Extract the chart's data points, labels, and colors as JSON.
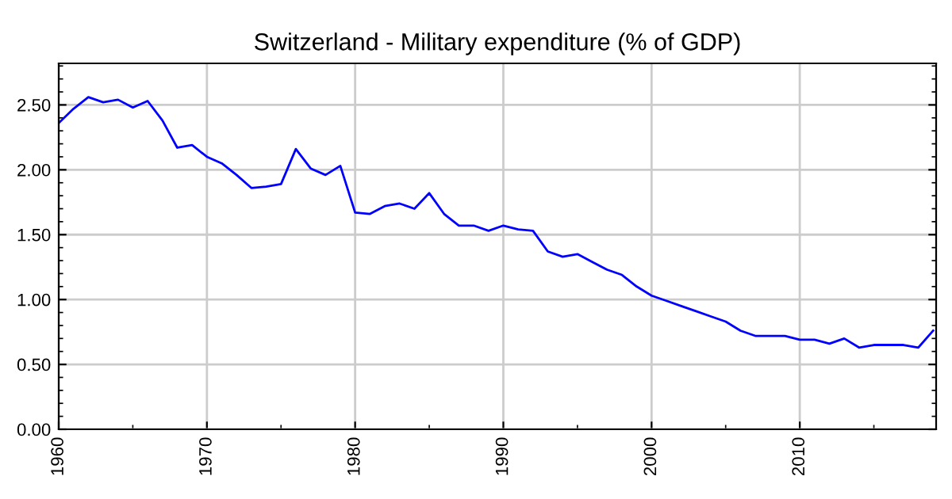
{
  "chart_data": {
    "type": "line",
    "title": "Switzerland - Military expenditure (% of GDP)",
    "x": [
      1960,
      1961,
      1962,
      1963,
      1964,
      1965,
      1966,
      1967,
      1968,
      1969,
      1970,
      1971,
      1972,
      1973,
      1974,
      1975,
      1976,
      1977,
      1978,
      1979,
      1980,
      1981,
      1982,
      1983,
      1984,
      1985,
      1986,
      1987,
      1988,
      1989,
      1990,
      1991,
      1992,
      1993,
      1994,
      1995,
      1996,
      1997,
      1998,
      1999,
      2000,
      2001,
      2002,
      2003,
      2004,
      2005,
      2006,
      2007,
      2008,
      2009,
      2010,
      2011,
      2012,
      2013,
      2014,
      2015,
      2016,
      2017,
      2018,
      2019
    ],
    "series": [
      {
        "color": "#0000ff",
        "values": [
          2.36,
          2.47,
          2.56,
          2.52,
          2.54,
          2.48,
          2.53,
          2.38,
          2.17,
          2.19,
          2.1,
          2.05,
          1.96,
          1.86,
          1.87,
          1.89,
          2.16,
          2.01,
          1.96,
          2.03,
          1.67,
          1.66,
          1.72,
          1.74,
          1.7,
          1.82,
          1.66,
          1.57,
          1.57,
          1.53,
          1.57,
          1.54,
          1.53,
          1.37,
          1.33,
          1.35,
          1.29,
          1.23,
          1.19,
          1.1,
          1.03,
          0.99,
          0.95,
          0.91,
          0.87,
          0.83,
          0.76,
          0.72,
          0.72,
          0.72,
          0.69,
          0.69,
          0.66,
          0.7,
          0.63,
          0.65,
          0.65,
          0.65,
          0.63,
          0.76
        ]
      }
    ],
    "xlim": [
      1960,
      2019.2
    ],
    "ylim": [
      0,
      2.82
    ],
    "xticks": [
      1960,
      1970,
      1980,
      1990,
      2000,
      2010
    ],
    "yticks": [
      {
        "value": 0,
        "label": "0.00"
      },
      {
        "value": 0.5,
        "label": "0.50"
      },
      {
        "value": 1,
        "label": "1.00"
      },
      {
        "value": 1.5,
        "label": "1.50"
      },
      {
        "value": 2,
        "label": "2.00"
      },
      {
        "value": 2.5,
        "label": "2.50"
      }
    ],
    "grid": true,
    "marker": "none",
    "line_style": "solid"
  }
}
